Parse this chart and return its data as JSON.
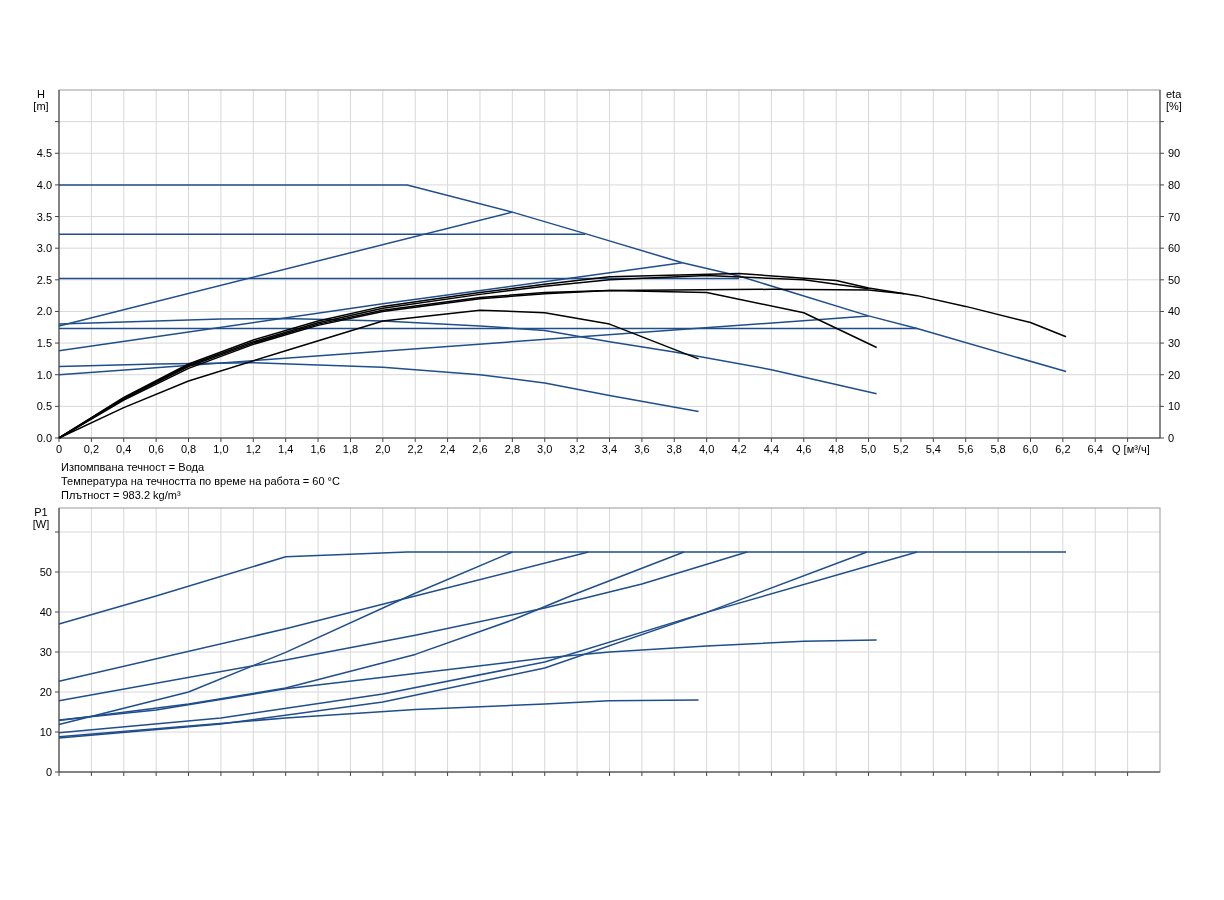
{
  "chart_data": [
    {
      "type": "line",
      "xlabel": "Q [м³/ч]",
      "ylabel": "H [m]",
      "y2label": "eta [%]",
      "xlim": [
        0,
        6.8
      ],
      "ylim": [
        0,
        5.5
      ],
      "y2lim": [
        0,
        110
      ],
      "xticks": [
        0,
        {
          "value": 0.2,
          "label": "0,2"
        },
        {
          "value": 0.4,
          "label": "0,4"
        },
        {
          "value": 0.6,
          "label": "0,6"
        },
        {
          "value": 0.8,
          "label": "0,8"
        },
        {
          "value": 1.0,
          "label": "1,0"
        },
        {
          "value": 1.2,
          "label": "1,2"
        },
        {
          "value": 1.4,
          "label": "1,4"
        },
        {
          "value": 1.6,
          "label": "1,6"
        },
        {
          "value": 1.8,
          "label": "1,8"
        },
        {
          "value": 2.0,
          "label": "2,0"
        },
        {
          "value": 2.2,
          "label": "2,2"
        },
        {
          "value": 2.4,
          "label": "2,4"
        },
        {
          "value": 2.6,
          "label": "2,6"
        },
        {
          "value": 2.8,
          "label": "2,8"
        },
        {
          "value": 3.0,
          "label": "3,0"
        },
        {
          "value": 3.2,
          "label": "3,2"
        },
        {
          "value": 3.4,
          "label": "3,4"
        },
        {
          "value": 3.6,
          "label": "3,6"
        },
        {
          "value": 3.8,
          "label": "3,8"
        },
        {
          "value": 4.0,
          "label": "4,0"
        },
        {
          "value": 4.2,
          "label": "4,2"
        },
        {
          "value": 4.4,
          "label": "4,4"
        },
        {
          "value": 4.6,
          "label": "4,6"
        },
        {
          "value": 4.8,
          "label": "4,8"
        },
        {
          "value": 5.0,
          "label": "5,0"
        },
        {
          "value": 5.2,
          "label": "5,2"
        },
        {
          "value": 5.4,
          "label": "5,4"
        },
        {
          "value": 5.6,
          "label": "5,6"
        },
        {
          "value": 5.8,
          "label": "5,8"
        },
        {
          "value": 6.0,
          "label": "6,0"
        },
        {
          "value": 6.2,
          "label": "6,2"
        },
        {
          "value": 6.4,
          "label": "6,4"
        },
        {
          "value": 6.6,
          "label": null
        }
      ],
      "yticks": [
        {
          "value": 0,
          "label": "0.0"
        },
        {
          "value": 0.5,
          "label": "0.5"
        },
        {
          "value": 1,
          "label": "1.0"
        },
        {
          "value": 1.5,
          "label": "1.5"
        },
        {
          "value": 2,
          "label": "2.0"
        },
        {
          "value": 2.5,
          "label": "2.5"
        },
        {
          "value": 3,
          "label": "3.0"
        },
        {
          "value": 3.5,
          "label": "3.5"
        },
        {
          "value": 4,
          "label": "4.0"
        },
        {
          "value": 4.5,
          "label": "4.5"
        },
        {
          "value": 5,
          "label": null
        }
      ],
      "y2ticks": [
        0,
        10,
        20,
        30,
        40,
        50,
        60,
        70,
        80,
        90,
        {
          "value": 100,
          "label": null
        }
      ],
      "grid": true,
      "line_style": "solid",
      "marker": "none",
      "annotations": [
        "Изпомпвана течност = Вода",
        "Температура на течността по време на работа = 60 °C",
        "Плътност = 983.2 kg/m³"
      ],
      "series": [
        {
          "color": "#1f4e8c",
          "x": [
            0,
            2.15,
            2.8,
            3.25,
            3.85,
            4.2,
            5.0,
            5.3,
            6.22
          ],
          "values": [
            4.0,
            4.0,
            3.57,
            3.23,
            2.77,
            2.56,
            1.93,
            1.73,
            1.05
          ]
        },
        {
          "color": "#1f4e8c",
          "x": [
            0,
            3.25
          ],
          "values": [
            3.22,
            3.22
          ]
        },
        {
          "color": "#1f4e8c",
          "x": [
            0,
            4.2
          ],
          "values": [
            2.52,
            2.52
          ]
        },
        {
          "color": "#1f4e8c",
          "x": [
            0,
            5.3
          ],
          "values": [
            1.73,
            1.73
          ]
        },
        {
          "color": "#1f4e8c",
          "x": [
            0,
            2.8
          ],
          "values": [
            1.77,
            3.57
          ]
        },
        {
          "color": "#1f4e8c",
          "x": [
            0,
            2.0,
            3.85
          ],
          "values": [
            1.38,
            2.12,
            2.77
          ]
        },
        {
          "color": "#1f4e8c",
          "x": [
            0,
            5.0
          ],
          "values": [
            1.0,
            1.93
          ]
        },
        {
          "color": "#1f4e8c",
          "x": [
            0,
            0.6,
            1.2,
            2.0,
            2.6,
            3.0,
            3.4,
            3.95
          ],
          "values": [
            1.13,
            1.17,
            1.19,
            1.12,
            1.0,
            0.87,
            0.67,
            0.42
          ]
        },
        {
          "color": "#1f4e8c",
          "x": [
            0,
            1.0,
            1.4,
            2.0,
            2.6,
            3.0,
            3.4,
            3.8,
            4.4,
            5.05
          ],
          "values": [
            1.8,
            1.88,
            1.89,
            1.85,
            1.77,
            1.7,
            1.52,
            1.36,
            1.08,
            0.7
          ]
        },
        {
          "color": "#000000",
          "axis": "y2",
          "x": [
            0,
            0.4,
            0.8,
            1.4,
            2.0,
            2.6,
            3.0,
            3.4,
            3.95
          ],
          "values": [
            0,
            9.6,
            18,
            27.6,
            37,
            40.4,
            39.6,
            36,
            25
          ]
        },
        {
          "color": "#000000",
          "axis": "y2",
          "x": [
            0,
            0.4,
            0.8,
            1.2,
            1.6,
            2.0,
            2.6,
            3.0,
            3.4,
            4.0,
            4.6,
            5.05
          ],
          "values": [
            0,
            12,
            22,
            29.6,
            35.6,
            40,
            44,
            45.6,
            46.6,
            46,
            39.6,
            28.6
          ]
        },
        {
          "color": "#000000",
          "axis": "y2",
          "x": [
            0,
            0.4,
            0.8,
            1.2,
            1.6,
            2.0,
            2.6,
            3.0,
            3.4,
            4.4,
            5.0,
            5.22
          ],
          "values": [
            0,
            12.4,
            22.6,
            30,
            36,
            40.4,
            44.4,
            46,
            46.6,
            47,
            46.8,
            45.6
          ]
        },
        {
          "color": "#000000",
          "axis": "y2",
          "x": [
            0,
            0.4,
            0.8,
            1.2,
            1.6,
            2.0,
            2.6,
            3.0,
            3.4,
            4.0,
            4.6,
            5.0
          ],
          "values": [
            0,
            12.6,
            23,
            30.4,
            36.4,
            41,
            45.4,
            48,
            50,
            51.4,
            50,
            47.2
          ]
        },
        {
          "color": "#000000",
          "axis": "y2",
          "x": [
            0,
            0.4,
            0.8,
            1.2,
            1.6,
            2.0,
            2.6,
            3.0,
            3.4,
            4.2,
            4.8,
            5.0,
            5.3,
            5.6,
            6.0,
            6.22
          ],
          "values": [
            0,
            12.8,
            23.4,
            31,
            37,
            41.6,
            46,
            48.6,
            51,
            52,
            49.8,
            47.4,
            45,
            41.6,
            36.5,
            32
          ]
        }
      ]
    },
    {
      "type": "line",
      "ylabel": "P1 [W]",
      "xlim": [
        0,
        6.8
      ],
      "ylim": [
        0,
        66
      ],
      "tick_labels": "y",
      "xticks": [
        0,
        0.2,
        0.4,
        0.6,
        0.8,
        1.0,
        1.2,
        1.4,
        1.6,
        1.8,
        2.0,
        2.2,
        2.4,
        2.6,
        2.8,
        3.0,
        3.2,
        3.4,
        3.6,
        3.8,
        4.0,
        4.2,
        4.4,
        4.6,
        4.8,
        5.0,
        5.2,
        5.4,
        5.6,
        5.8,
        6.0,
        6.2,
        6.4,
        6.6
      ],
      "yticks": [
        0,
        10,
        20,
        30,
        40,
        50,
        {
          "value": 60,
          "label": null
        }
      ],
      "grid": true,
      "line_style": "solid",
      "marker": "none",
      "series": [
        {
          "color": "#1f4e8c",
          "x": [
            0,
            0.6,
            1.4,
            2.15,
            6.22
          ],
          "values": [
            37,
            44,
            53.8,
            55,
            55
          ]
        },
        {
          "color": "#1f4e8c",
          "x": [
            0,
            1.4,
            2.2,
            3.27
          ],
          "values": [
            22.7,
            35.8,
            44,
            55
          ]
        },
        {
          "color": "#1f4e8c",
          "x": [
            0,
            0.8,
            1.4,
            2.2,
            2.8
          ],
          "values": [
            11.9,
            20,
            29.9,
            44.7,
            55
          ]
        },
        {
          "color": "#1f4e8c",
          "x": [
            0,
            1.4,
            2.2,
            3.0,
            3.6,
            4.25
          ],
          "values": [
            17.8,
            28,
            34.2,
            41,
            47,
            55
          ]
        },
        {
          "color": "#1f4e8c",
          "x": [
            0,
            0.8,
            1.4,
            2.2,
            2.8,
            3.2,
            3.86
          ],
          "values": [
            12.9,
            17,
            21,
            29.4,
            38,
            44.7,
            55
          ]
        },
        {
          "color": "#1f4e8c",
          "x": [
            0,
            1.0,
            2.0,
            3.0,
            4.0,
            4.99
          ],
          "values": [
            9.8,
            13.5,
            19.5,
            27.5,
            39.9,
            55
          ]
        },
        {
          "color": "#1f4e8c",
          "x": [
            0,
            1.0,
            2.0,
            3.0,
            4.0,
            5.3
          ],
          "values": [
            8.5,
            12,
            17.5,
            26,
            39.9,
            55
          ]
        },
        {
          "color": "#1f4e8c",
          "x": [
            0,
            0.6,
            1.4,
            2.2,
            3.0,
            3.4,
            4.0,
            4.6,
            5.05
          ],
          "values": [
            13,
            15.5,
            20.8,
            24.6,
            28.5,
            30,
            31.5,
            32.7,
            33
          ]
        },
        {
          "color": "#1f4e8c",
          "x": [
            0,
            1.4,
            2.2,
            3.0,
            3.4,
            3.95
          ],
          "values": [
            8.8,
            13.5,
            15.6,
            17,
            17.8,
            18
          ]
        }
      ]
    }
  ]
}
